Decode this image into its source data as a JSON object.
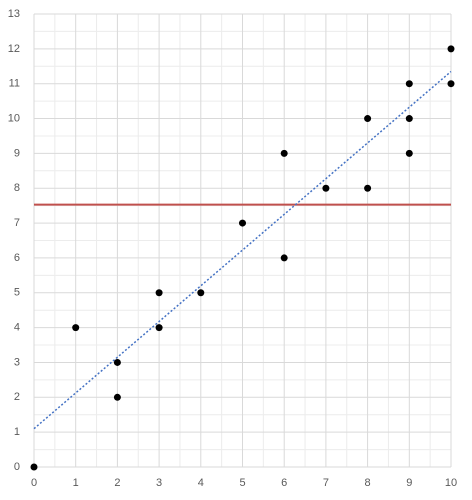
{
  "chart_data": {
    "type": "scatter",
    "series": [
      {
        "color": "#000000",
        "x": [
          0,
          1,
          2,
          2,
          3,
          3,
          4,
          5,
          6,
          6,
          7,
          8,
          8,
          9,
          9,
          9,
          10,
          10
        ],
        "values": [
          0,
          4,
          3,
          2,
          5,
          4,
          5,
          7,
          9,
          6,
          8,
          10,
          8,
          11,
          10,
          9,
          12,
          11
        ]
      }
    ],
    "trendline": {
      "x": [
        0,
        10
      ],
      "values": [
        1.1,
        11.35
      ],
      "color": "#4472c4"
    },
    "hline": {
      "value": 7.53,
      "color": "#c0504d"
    },
    "xlim": [
      0,
      10
    ],
    "xticks": [
      0,
      1,
      2,
      3,
      4,
      5,
      6,
      7,
      8,
      9,
      10
    ],
    "ylim": [
      0,
      13
    ],
    "yticks": [
      0,
      1,
      2,
      3,
      4,
      5,
      6,
      7,
      8,
      9,
      10,
      11,
      12,
      13
    ],
    "grid": true,
    "minor_grid": true
  }
}
